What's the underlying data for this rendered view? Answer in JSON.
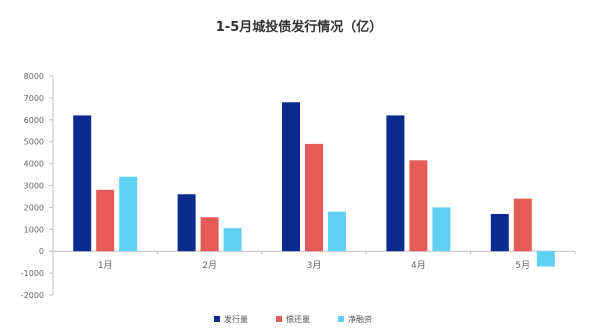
{
  "chart_data": {
    "type": "bar",
    "title": "1-5月城投债发行情况（亿）",
    "categories": [
      "1月",
      "2月",
      "3月",
      "4月",
      "5月"
    ],
    "series": [
      {
        "name": "发行量",
        "values": [
          6200,
          2600,
          6800,
          6200,
          1700
        ]
      },
      {
        "name": "偿还量",
        "values": [
          2800,
          1550,
          4900,
          4150,
          2400
        ]
      },
      {
        "name": "净融资",
        "values": [
          3400,
          1050,
          1800,
          2000,
          -700
        ]
      }
    ],
    "ylim": [
      -2000,
      8000
    ],
    "yticks": [
      -2000,
      -1000,
      0,
      1000,
      2000,
      3000,
      4000,
      5000,
      6000,
      7000,
      8000
    ],
    "ytick_labels": [
      "-2000",
      "-1000",
      "0",
      "1000",
      "2000",
      "3000",
      "4000",
      "5000",
      "6000",
      "7000",
      "8000"
    ],
    "xlabel": "",
    "ylabel": "",
    "grid": false,
    "legend_position": "bottom",
    "colors": [
      "#0b2a8f",
      "#e45b57",
      "#5fd0ef"
    ]
  }
}
